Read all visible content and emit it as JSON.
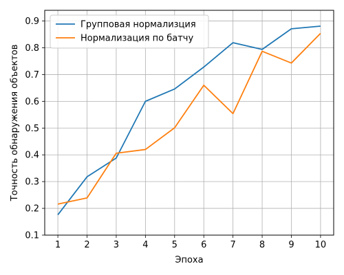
{
  "chart_data": {
    "type": "line",
    "xlabel": "Эпоха",
    "ylabel": "Точность обнаружения объектов",
    "x": [
      1,
      2,
      3,
      4,
      5,
      6,
      7,
      8,
      9,
      10
    ],
    "xticks": [
      "1",
      "2",
      "3",
      "4",
      "5",
      "6",
      "7",
      "8",
      "9",
      "10"
    ],
    "yticks": [
      "0.1",
      "0.2",
      "0.3",
      "0.4",
      "0.5",
      "0.6",
      "0.7",
      "0.8",
      "0.9"
    ],
    "xlim": [
      0.55,
      10.45
    ],
    "ylim": [
      0.1,
      0.94
    ],
    "grid": true,
    "legend_position": "top-left",
    "series": [
      {
        "name": "Групповая нормализция",
        "color": "#1f77b4",
        "values": [
          0.176,
          0.318,
          0.388,
          0.6,
          0.646,
          0.728,
          0.819,
          0.794,
          0.871,
          0.881
        ]
      },
      {
        "name": "Нормализация по батчу",
        "color": "#ff7f0e",
        "values": [
          0.216,
          0.239,
          0.406,
          0.42,
          0.501,
          0.66,
          0.554,
          0.787,
          0.743,
          0.854
        ]
      }
    ]
  }
}
